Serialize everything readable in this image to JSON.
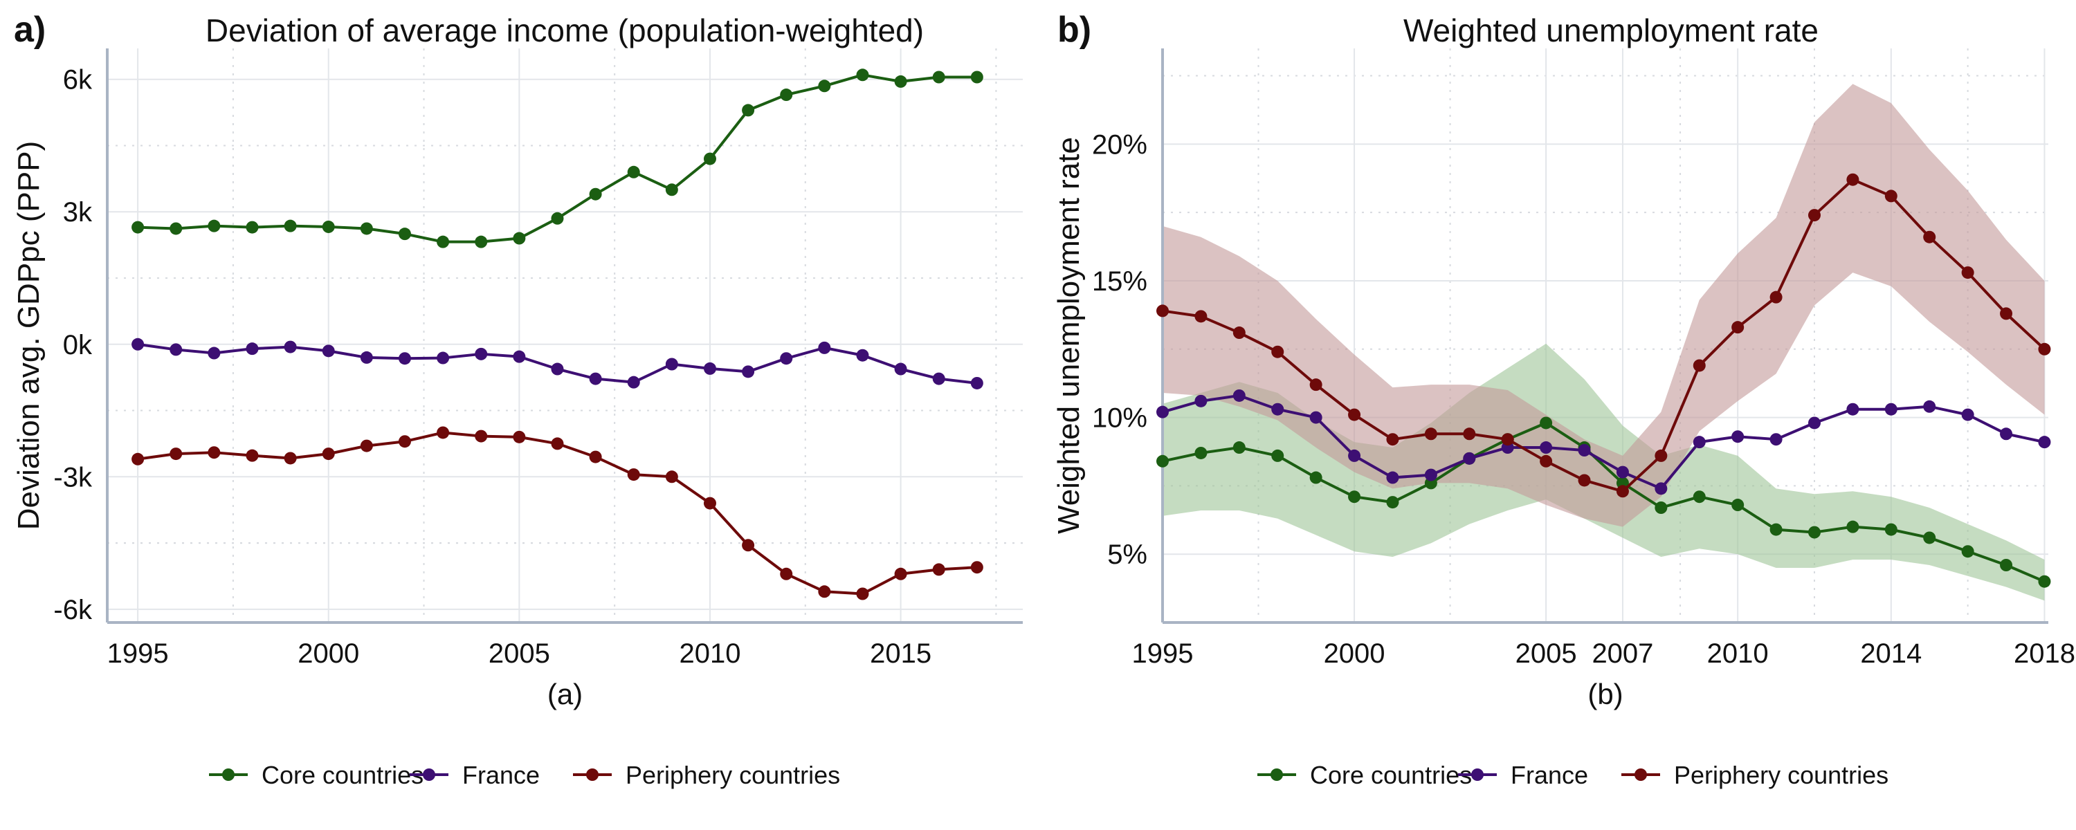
{
  "colors": {
    "core": "#1b5e12",
    "france": "#3d0f73",
    "periphery": "#6e0a0a",
    "core_band": "#9fc497",
    "periphery_band": "#c39a9a",
    "axis": "#a9b4c4",
    "grid_major": "#e3e6ea",
    "grid_minor": "#d7dadf"
  },
  "chart_data": [
    {
      "type": "line",
      "panel_label": "a)",
      "title": "Deviation of average income (population-weighted)",
      "xlabel": "(a)",
      "ylabel": "Deviation avg. GDPpc (PPP)",
      "xlim": [
        1994.2,
        2018.2
      ],
      "ylim": [
        -6300,
        6700
      ],
      "x_ticks": [
        1995,
        2000,
        2005,
        2010,
        2015
      ],
      "x_tick_labels": [
        "1995",
        "2000",
        "2005",
        "2010",
        "2015"
      ],
      "y_ticks": [
        6000,
        3000,
        0,
        -3000,
        -6000
      ],
      "y_tick_labels": [
        "6k",
        "3k",
        "0k",
        "-3k",
        "-6k"
      ],
      "grid": true,
      "legend_position": "bottom",
      "x": [
        1995,
        1996,
        1997,
        1998,
        1999,
        2000,
        2001,
        2002,
        2003,
        2004,
        2005,
        2006,
        2007,
        2008,
        2009,
        2010,
        2011,
        2012,
        2013,
        2014,
        2015,
        2016,
        2017
      ],
      "series": [
        {
          "name": "Core countries",
          "color_key": "core",
          "values": [
            2650,
            2620,
            2680,
            2650,
            2680,
            2660,
            2620,
            2500,
            2320,
            2320,
            2400,
            2850,
            3400,
            3900,
            3500,
            4200,
            5300,
            5650,
            5850,
            6100,
            5950,
            6050,
            6050
          ]
        },
        {
          "name": "France",
          "color_key": "france",
          "values": [
            0,
            -120,
            -200,
            -100,
            -60,
            -150,
            -300,
            -320,
            -310,
            -220,
            -280,
            -560,
            -780,
            -860,
            -450,
            -550,
            -620,
            -320,
            -80,
            -250,
            -560,
            -780,
            -880
          ]
        },
        {
          "name": "Periphery countries",
          "color_key": "periphery",
          "values": [
            -2600,
            -2480,
            -2450,
            -2520,
            -2580,
            -2480,
            -2300,
            -2200,
            -2000,
            -2080,
            -2100,
            -2250,
            -2550,
            -2950,
            -3000,
            -3600,
            -4550,
            -5200,
            -5600,
            -5650,
            -5200,
            -5100,
            -5050
          ]
        }
      ]
    },
    {
      "type": "line",
      "panel_label": "b)",
      "title": "Weighted unemployment rate",
      "xlabel": "(b)",
      "ylabel": "Weighted unemployment rate",
      "xlim": [
        1995,
        2018.1
      ],
      "ylim": [
        2.5,
        23.5
      ],
      "x_ticks": [
        1995,
        2000,
        2005,
        2007,
        2010,
        2014,
        2018
      ],
      "x_tick_labels": [
        "1995",
        "2000",
        "2005",
        "2007",
        "2010",
        "2014",
        "2018"
      ],
      "y_ticks": [
        20,
        15,
        10,
        5
      ],
      "y_tick_labels": [
        "20%",
        "15%",
        "10%",
        "5%"
      ],
      "grid": true,
      "legend_position": "bottom",
      "x": [
        1995,
        1996,
        1997,
        1998,
        1999,
        2000,
        2001,
        2002,
        2003,
        2004,
        2005,
        2006,
        2007,
        2008,
        2009,
        2010,
        2011,
        2012,
        2013,
        2014,
        2015,
        2016,
        2017,
        2018
      ],
      "series": [
        {
          "name": "Core countries",
          "color_key": "core",
          "band_color_key": "core_band",
          "values": [
            8.4,
            8.7,
            8.9,
            8.6,
            7.8,
            7.1,
            6.9,
            7.6,
            8.5,
            9.2,
            9.8,
            8.9,
            7.6,
            6.7,
            7.1,
            6.8,
            5.9,
            5.8,
            6.0,
            5.9,
            5.6,
            5.1,
            4.6,
            4.0
          ],
          "band_lower": [
            6.4,
            6.6,
            6.6,
            6.3,
            5.7,
            5.1,
            4.9,
            5.4,
            6.1,
            6.6,
            7.0,
            6.3,
            5.6,
            4.9,
            5.2,
            5.0,
            4.5,
            4.5,
            4.8,
            4.8,
            4.6,
            4.2,
            3.8,
            3.3
          ],
          "band_upper": [
            10.5,
            10.9,
            11.3,
            10.9,
            9.9,
            9.1,
            8.9,
            9.8,
            10.9,
            11.8,
            12.7,
            11.4,
            9.7,
            8.6,
            9.0,
            8.6,
            7.4,
            7.2,
            7.3,
            7.1,
            6.7,
            6.1,
            5.5,
            4.8
          ]
        },
        {
          "name": "France",
          "color_key": "france",
          "values": [
            10.2,
            10.6,
            10.8,
            10.3,
            10.0,
            8.6,
            7.8,
            7.9,
            8.5,
            8.9,
            8.9,
            8.8,
            8.0,
            7.4,
            9.1,
            9.3,
            9.2,
            9.8,
            10.3,
            10.3,
            10.4,
            10.1,
            9.4,
            9.1
          ]
        },
        {
          "name": "Periphery countries",
          "color_key": "periphery",
          "band_color_key": "periphery_band",
          "values": [
            13.9,
            13.7,
            13.1,
            12.4,
            11.2,
            10.1,
            9.2,
            9.4,
            9.4,
            9.2,
            8.4,
            7.7,
            7.3,
            8.6,
            11.9,
            13.3,
            14.4,
            17.4,
            18.7,
            18.1,
            16.6,
            15.3,
            13.8,
            12.5
          ],
          "band_lower": [
            10.9,
            10.8,
            10.4,
            9.9,
            8.9,
            8.0,
            7.4,
            7.6,
            7.6,
            7.4,
            6.8,
            6.3,
            6.0,
            7.1,
            9.5,
            10.6,
            11.6,
            14.1,
            15.3,
            14.8,
            13.5,
            12.4,
            11.2,
            10.1
          ],
          "band_upper": [
            17.0,
            16.6,
            15.9,
            15.0,
            13.6,
            12.3,
            11.1,
            11.2,
            11.2,
            11.0,
            10.1,
            9.2,
            8.6,
            10.2,
            14.3,
            16.0,
            17.3,
            20.8,
            22.2,
            21.5,
            19.8,
            18.3,
            16.5,
            15.0
          ]
        }
      ]
    }
  ]
}
